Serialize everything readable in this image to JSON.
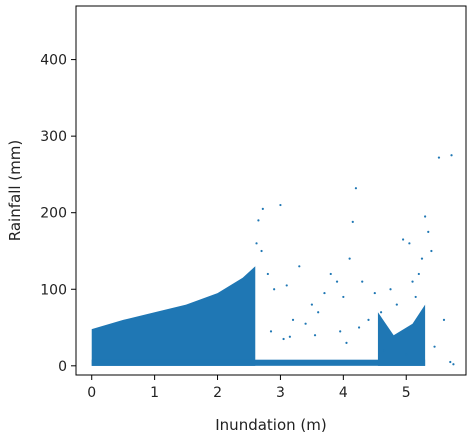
{
  "chart_data": {
    "type": "scatter",
    "title": "",
    "xlabel": "Inundation (m)",
    "ylabel": "Rainfall (mm)",
    "xlim": [
      -0.25,
      5.95
    ],
    "ylim": [
      -12,
      470
    ],
    "xticks": [
      0,
      1,
      2,
      3,
      4,
      5
    ],
    "yticks": [
      0,
      100,
      200,
      300,
      400
    ],
    "grid": false,
    "legend": "none",
    "marker_color": "#1f77b4",
    "series": [
      {
        "dense_region": {
          "x_range": [
            0,
            2.6
          ],
          "lower_bound_mm": 0,
          "upper_bound_mm_at_x": [
            [
              0,
              48
            ],
            [
              0.5,
              60
            ],
            [
              1.0,
              70
            ],
            [
              1.5,
              80
            ],
            [
              2.0,
              95
            ],
            [
              2.4,
              115
            ],
            [
              2.6,
              130
            ]
          ]
        },
        "sparse_region_points": [
          [
            2.72,
            205
          ],
          [
            3.0,
            210
          ],
          [
            2.65,
            190
          ],
          [
            2.62,
            160
          ],
          [
            2.7,
            150
          ],
          [
            2.8,
            120
          ],
          [
            2.9,
            100
          ],
          [
            3.1,
            105
          ],
          [
            3.3,
            130
          ],
          [
            3.5,
            80
          ],
          [
            3.7,
            95
          ],
          [
            3.8,
            120
          ],
          [
            3.9,
            110
          ],
          [
            4.0,
            90
          ],
          [
            4.15,
            188
          ],
          [
            4.2,
            232
          ],
          [
            4.3,
            110
          ],
          [
            4.1,
            140
          ],
          [
            3.2,
            60
          ],
          [
            3.4,
            55
          ],
          [
            3.6,
            70
          ],
          [
            3.95,
            45
          ],
          [
            4.4,
            60
          ],
          [
            4.5,
            95
          ],
          [
            4.6,
            70
          ],
          [
            4.75,
            100
          ],
          [
            4.85,
            80
          ],
          [
            4.95,
            165
          ],
          [
            5.05,
            160
          ],
          [
            5.1,
            110
          ],
          [
            5.15,
            90
          ],
          [
            5.2,
            120
          ],
          [
            5.25,
            140
          ],
          [
            5.3,
            195
          ],
          [
            5.35,
            175
          ],
          [
            5.4,
            150
          ],
          [
            5.52,
            272
          ],
          [
            5.72,
            275
          ],
          [
            5.6,
            60
          ],
          [
            5.7,
            5
          ],
          [
            5.75,
            2
          ],
          [
            3.05,
            35
          ],
          [
            3.55,
            40
          ],
          [
            4.05,
            30
          ],
          [
            4.65,
            20
          ],
          [
            5.0,
            15
          ],
          [
            5.45,
            25
          ],
          [
            2.85,
            45
          ],
          [
            3.15,
            38
          ],
          [
            4.25,
            50
          ]
        ],
        "secondary_dense_region": {
          "x_range": [
            4.55,
            5.3
          ],
          "upper_bound_mm": 70
        }
      }
    ]
  }
}
